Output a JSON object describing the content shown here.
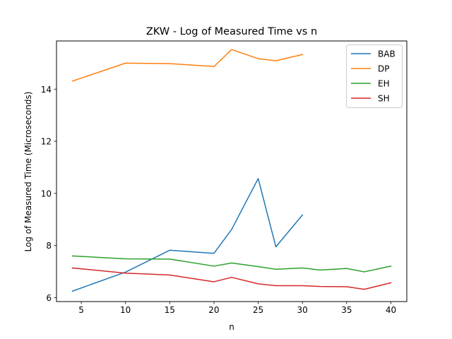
{
  "chart_data": {
    "type": "line",
    "title": "ZKW - Log of Measured Time vs n",
    "xlabel": "n",
    "ylabel": "Log of Measured Time (Microseconds)",
    "xlim": [
      2.2,
      41.8
    ],
    "ylim": [
      5.85,
      15.85
    ],
    "xticks": [
      5,
      10,
      15,
      20,
      25,
      30,
      35,
      40
    ],
    "yticks": [
      6,
      8,
      10,
      12,
      14
    ],
    "grid": false,
    "legend_position": "upper right",
    "series": [
      {
        "name": "BAB",
        "color": "#1f77b4",
        "x": [
          4,
          10,
          15,
          20,
          22,
          25,
          27,
          30
        ],
        "y": [
          6.25,
          6.98,
          7.82,
          7.7,
          8.62,
          10.57,
          7.95,
          9.17
        ]
      },
      {
        "name": "DP",
        "color": "#ff7f0e",
        "x": [
          4,
          10,
          15,
          20,
          22,
          25,
          27,
          30
        ],
        "y": [
          14.31,
          15.0,
          14.98,
          14.87,
          15.52,
          15.17,
          15.09,
          15.33
        ]
      },
      {
        "name": "EH",
        "color": "#2ca02c",
        "x": [
          4,
          10,
          15,
          20,
          22,
          25,
          27,
          30,
          32,
          35,
          37,
          40
        ],
        "y": [
          7.6,
          7.49,
          7.48,
          7.21,
          7.33,
          7.19,
          7.09,
          7.14,
          7.06,
          7.12,
          6.99,
          7.21
        ]
      },
      {
        "name": "SH",
        "color": "#d62728",
        "x": [
          4,
          10,
          15,
          20,
          22,
          25,
          27,
          30,
          32,
          35,
          37,
          40
        ],
        "y": [
          7.14,
          6.94,
          6.87,
          6.61,
          6.78,
          6.53,
          6.46,
          6.46,
          6.43,
          6.42,
          6.32,
          6.57
        ]
      }
    ]
  }
}
